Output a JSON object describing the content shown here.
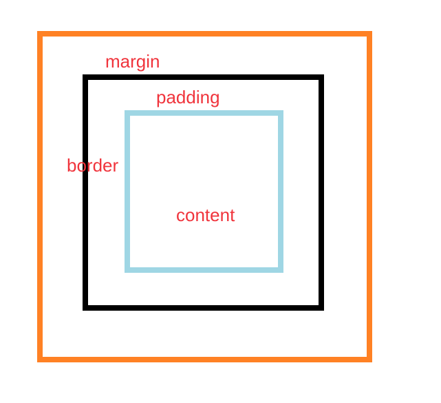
{
  "labels": {
    "margin": "margin",
    "padding": "padding",
    "border": "border",
    "content": "content"
  },
  "colors": {
    "margin_outline": "#ff8124",
    "border_outline": "#000000",
    "content_outline": "#9fd6e4",
    "label_text": "#f0343c"
  }
}
